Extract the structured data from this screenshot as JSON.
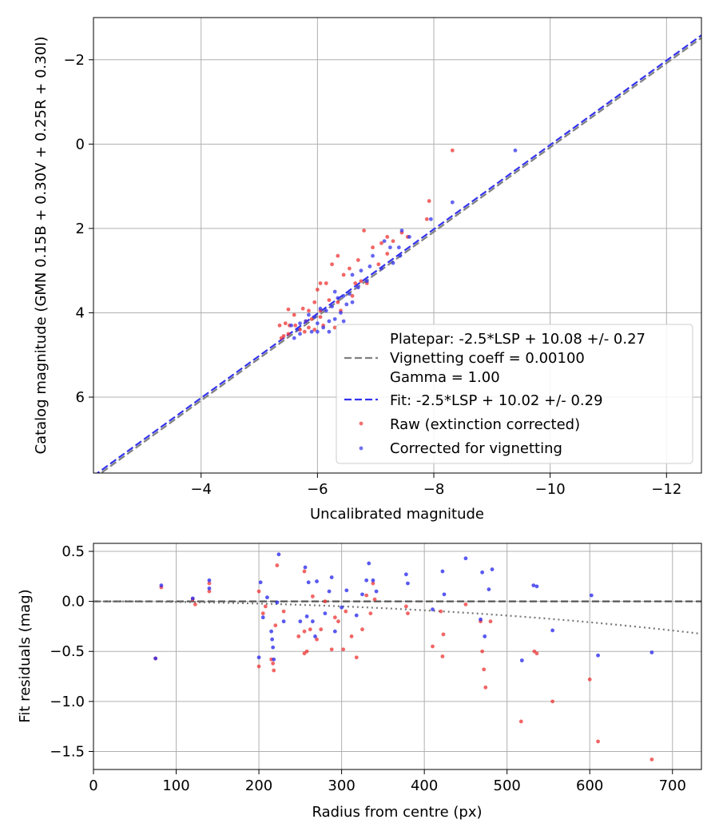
{
  "chart_data": [
    {
      "type": "scatter",
      "xlabel": "Uncalibrated magnitude",
      "ylabel": "Catalog magnitude (GMN 0.15B + 0.30V + 0.25R + 0.30I)",
      "xlim": [
        -2.15,
        -12.6
      ],
      "ylim": [
        7.8,
        -3.0
      ],
      "x_ticks": [
        -4,
        -6,
        -8,
        -10,
        -12
      ],
      "x_tick_labels": [
        "−4",
        "−6",
        "−8",
        "−10",
        "−12"
      ],
      "y_ticks": [
        -2,
        0,
        2,
        4,
        6
      ],
      "y_tick_labels": [
        "−2",
        "0",
        "2",
        "4",
        "6"
      ],
      "grid": true,
      "legend_position": "lower-right",
      "legend": {
        "platepar_lines": [
          "Platepar: -2.5*LSP + 10.08 +/- 0.27",
          "Vignetting coeff = 0.00100",
          "Gamma = 1.00"
        ],
        "fit_label": "Fit: -2.5*LSP + 10.02 +/- 0.29",
        "raw_label": "Raw (extinction corrected)",
        "corrected_label": "Corrected for vignetting"
      },
      "lines": [
        {
          "name": "platepar",
          "slope": 1,
          "intercept": 10.08,
          "style": "dashed",
          "color": "#808080"
        },
        {
          "name": "fit",
          "slope": 1,
          "intercept": 10.02,
          "style": "dashed",
          "color": "#3333ee"
        }
      ],
      "series": [
        {
          "name": "Raw (extinction corrected)",
          "color": "#ee3333",
          "points": [
            [
              -8.32,
              0.15
            ],
            [
              -7.92,
              1.35
            ],
            [
              -7.88,
              1.78
            ],
            [
              -7.55,
              2.2
            ],
            [
              -7.45,
              2.1
            ],
            [
              -7.3,
              2.3
            ],
            [
              -7.2,
              2.2
            ],
            [
              -7.1,
              2.35
            ],
            [
              -7.2,
              2.6
            ],
            [
              -7.05,
              2.85
            ],
            [
              -6.95,
              2.45
            ],
            [
              -6.8,
              2.05
            ],
            [
              -6.7,
              2.75
            ],
            [
              -6.55,
              2.95
            ],
            [
              -6.45,
              3.1
            ],
            [
              -6.75,
              3.25
            ],
            [
              -6.35,
              2.65
            ],
            [
              -6.25,
              2.85
            ],
            [
              -6.05,
              3.3
            ],
            [
              -6.0,
              3.45
            ],
            [
              -6.15,
              3.3
            ],
            [
              -5.95,
              3.75
            ],
            [
              -6.2,
              3.7
            ],
            [
              -6.05,
              3.95
            ],
            [
              -5.85,
              3.95
            ],
            [
              -5.75,
              3.9
            ],
            [
              -5.5,
              3.92
            ],
            [
              -5.6,
              4.05
            ],
            [
              -5.45,
              4.25
            ],
            [
              -5.52,
              4.3
            ],
            [
              -5.62,
              4.3
            ],
            [
              -5.7,
              4.4
            ],
            [
              -5.5,
              4.5
            ],
            [
              -5.42,
              4.55
            ],
            [
              -5.8,
              4.2
            ],
            [
              -5.9,
              4.15
            ],
            [
              -6.05,
              4.1
            ],
            [
              -6.1,
              4.3
            ],
            [
              -5.95,
              4.4
            ],
            [
              -5.85,
              4.35
            ],
            [
              -5.38,
              4.6
            ],
            [
              -5.35,
              4.3
            ],
            [
              -6.3,
              4.35
            ],
            [
              -5.78,
              4.45
            ],
            [
              -6.65,
              3.3
            ],
            [
              -6.85,
              3.3
            ],
            [
              -6.6,
              3.6
            ],
            [
              -6.35,
              3.75
            ],
            [
              -6.4,
              3.95
            ]
          ]
        },
        {
          "name": "Corrected for vignetting",
          "color": "#3333ee",
          "points": [
            [
              -9.4,
              0.15
            ],
            [
              -8.32,
              1.38
            ],
            [
              -7.95,
              1.78
            ],
            [
              -7.58,
              2.2
            ],
            [
              -7.45,
              2.05
            ],
            [
              -7.4,
              2.45
            ],
            [
              -7.25,
              2.45
            ],
            [
              -7.15,
              2.3
            ],
            [
              -7.42,
              2.65
            ],
            [
              -7.3,
              2.82
            ],
            [
              -7.1,
              2.95
            ],
            [
              -6.95,
              2.65
            ],
            [
              -6.9,
              2.9
            ],
            [
              -6.75,
              3.0
            ],
            [
              -6.6,
              3.1
            ],
            [
              -6.85,
              3.25
            ],
            [
              -6.7,
              3.4
            ],
            [
              -6.55,
              3.55
            ],
            [
              -6.45,
              3.6
            ],
            [
              -6.3,
              3.5
            ],
            [
              -6.5,
              3.8
            ],
            [
              -6.25,
              3.85
            ],
            [
              -6.15,
              3.95
            ],
            [
              -6.4,
              4.0
            ],
            [
              -6.2,
              4.2
            ],
            [
              -6.1,
              4.35
            ],
            [
              -6.0,
              4.25
            ],
            [
              -5.95,
              4.1
            ],
            [
              -5.85,
              4.05
            ],
            [
              -5.8,
              4.2
            ],
            [
              -5.7,
              4.25
            ],
            [
              -5.65,
              4.4
            ],
            [
              -5.55,
              4.3
            ],
            [
              -5.7,
              4.5
            ],
            [
              -5.6,
              4.6
            ],
            [
              -5.9,
              4.45
            ],
            [
              -6.0,
              4.45
            ],
            [
              -6.3,
              4.15
            ],
            [
              -6.45,
              4.2
            ],
            [
              -6.2,
              4.45
            ],
            [
              -6.05,
              3.9
            ],
            [
              -6.6,
              3.75
            ],
            [
              -6.35,
              3.65
            ]
          ]
        }
      ]
    },
    {
      "type": "scatter",
      "xlabel": "Radius from centre (px)",
      "ylabel": "Fit residuals (mag)",
      "xlim": [
        0,
        735
      ],
      "ylim": [
        -1.68,
        0.58
      ],
      "x_ticks": [
        0,
        100,
        200,
        300,
        400,
        500,
        600,
        700
      ],
      "x_tick_labels": [
        "0",
        "100",
        "200",
        "300",
        "400",
        "500",
        "600",
        "700"
      ],
      "y_ticks": [
        0.5,
        0.0,
        -0.5,
        -1.0,
        -1.5
      ],
      "y_tick_labels": [
        "0.5",
        "0.0",
        "−0.5",
        "−1.0",
        "−1.5"
      ],
      "grid": true,
      "lines": [
        {
          "name": "zero",
          "style": "dashed",
          "color": "#555555",
          "y": 0
        },
        {
          "name": "vignetting",
          "style": "dotted",
          "color": "#777777",
          "formula": "2.5*log10(cos(0.001*r))"
        }
      ],
      "series": [
        {
          "name": "Raw",
          "color": "#ee3333",
          "points": [
            [
              75,
              -0.57
            ],
            [
              82,
              0.14
            ],
            [
              120,
              0.02
            ],
            [
              123,
              -0.03
            ],
            [
              140,
              0.1
            ],
            [
              140,
              0.18
            ],
            [
              200,
              -0.65
            ],
            [
              200,
              0.1
            ],
            [
              205,
              -0.12
            ],
            [
              208,
              -0.05
            ],
            [
              215,
              -0.58
            ],
            [
              217,
              -0.62
            ],
            [
              218,
              -0.69
            ],
            [
              220,
              -0.24
            ],
            [
              222,
              0.36
            ],
            [
              230,
              -0.1
            ],
            [
              248,
              -0.35
            ],
            [
              255,
              -0.52
            ],
            [
              255,
              -0.3
            ],
            [
              255,
              0.3
            ],
            [
              258,
              -0.5
            ],
            [
              262,
              -0.28
            ],
            [
              265,
              0.05
            ],
            [
              270,
              -0.38
            ],
            [
              275,
              -0.28
            ],
            [
              280,
              0.0
            ],
            [
              288,
              -0.48
            ],
            [
              292,
              -0.16
            ],
            [
              296,
              -0.2
            ],
            [
              302,
              -0.48
            ],
            [
              305,
              -0.1
            ],
            [
              312,
              -0.35
            ],
            [
              318,
              -0.56
            ],
            [
              325,
              -0.28
            ],
            [
              330,
              0.06
            ],
            [
              335,
              -0.12
            ],
            [
              338,
              0.18
            ],
            [
              340,
              0.02
            ],
            [
              378,
              -0.05
            ],
            [
              380,
              -0.12
            ],
            [
              410,
              -0.45
            ],
            [
              420,
              -0.1
            ],
            [
              422,
              -0.55
            ],
            [
              423,
              -0.33
            ],
            [
              450,
              -0.03
            ],
            [
              468,
              -0.2
            ],
            [
              470,
              -0.5
            ],
            [
              472,
              -0.68
            ],
            [
              474,
              -0.86
            ],
            [
              480,
              -0.2
            ],
            [
              517,
              -1.2
            ],
            [
              533,
              -0.5
            ],
            [
              536,
              -0.52
            ],
            [
              555,
              -1.0
            ],
            [
              600,
              -0.78
            ],
            [
              610,
              -1.4
            ],
            [
              675,
              -1.58
            ]
          ]
        },
        {
          "name": "Corrected",
          "color": "#2222ee",
          "points": [
            [
              75,
              -0.57
            ],
            [
              82,
              0.16
            ],
            [
              120,
              0.03
            ],
            [
              140,
              0.13
            ],
            [
              140,
              0.21
            ],
            [
              200,
              -0.56
            ],
            [
              202,
              0.19
            ],
            [
              205,
              -0.16
            ],
            [
              210,
              0.04
            ],
            [
              215,
              -0.3
            ],
            [
              216,
              -0.38
            ],
            [
              217,
              -0.46
            ],
            [
              218,
              -0.58
            ],
            [
              222,
              -0.01
            ],
            [
              224,
              0.47
            ],
            [
              230,
              -0.2
            ],
            [
              250,
              -0.2
            ],
            [
              256,
              0.34
            ],
            [
              258,
              -0.15
            ],
            [
              260,
              0.19
            ],
            [
              265,
              -0.2
            ],
            [
              268,
              -0.35
            ],
            [
              270,
              0.2
            ],
            [
              280,
              -0.12
            ],
            [
              285,
              0.1
            ],
            [
              288,
              0.24
            ],
            [
              292,
              -0.3
            ],
            [
              300,
              -0.06
            ],
            [
              306,
              0.11
            ],
            [
              318,
              -0.14
            ],
            [
              325,
              0.07
            ],
            [
              330,
              0.21
            ],
            [
              333,
              0.38
            ],
            [
              338,
              0.21
            ],
            [
              342,
              0.1
            ],
            [
              378,
              0.27
            ],
            [
              380,
              0.18
            ],
            [
              410,
              -0.08
            ],
            [
              422,
              0.3
            ],
            [
              424,
              0.07
            ],
            [
              450,
              0.43
            ],
            [
              468,
              -0.18
            ],
            [
              470,
              0.29
            ],
            [
              473,
              -0.35
            ],
            [
              478,
              0.12
            ],
            [
              482,
              0.32
            ],
            [
              518,
              -0.59
            ],
            [
              532,
              0.16
            ],
            [
              536,
              0.15
            ],
            [
              555,
              -0.29
            ],
            [
              602,
              0.06
            ],
            [
              610,
              -0.54
            ],
            [
              675,
              -0.51
            ]
          ]
        }
      ]
    }
  ]
}
